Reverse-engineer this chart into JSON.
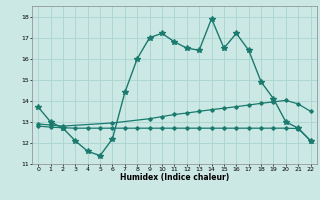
{
  "title": "",
  "xlabel": "Humidex (Indice chaleur)",
  "ylabel": "",
  "bg_color": "#cce8e4",
  "grid_color": "#aad4cf",
  "line_color": "#1a7a6e",
  "xlim": [
    -0.5,
    22.5
  ],
  "ylim": [
    11,
    18.5
  ],
  "yticks": [
    11,
    12,
    13,
    14,
    15,
    16,
    17,
    18
  ],
  "xticks": [
    0,
    1,
    2,
    3,
    4,
    5,
    6,
    7,
    8,
    9,
    10,
    11,
    12,
    13,
    14,
    15,
    16,
    17,
    18,
    19,
    20,
    21,
    22
  ],
  "line1_x": [
    0,
    1,
    2,
    3,
    4,
    5,
    6,
    7,
    8,
    9,
    10,
    11,
    12,
    13,
    14,
    15,
    16,
    17,
    18,
    19,
    20,
    21,
    22
  ],
  "line1_y": [
    13.7,
    13.0,
    12.7,
    12.1,
    11.6,
    11.4,
    12.2,
    14.4,
    16.0,
    17.0,
    17.2,
    16.8,
    16.5,
    16.4,
    17.9,
    16.5,
    17.2,
    16.4,
    14.9,
    14.1,
    13.0,
    12.7,
    12.1
  ],
  "line2_x": [
    0,
    1,
    2,
    6,
    9,
    10,
    11,
    12,
    13,
    14,
    15,
    16,
    17,
    18,
    19,
    20,
    21,
    22
  ],
  "line2_y": [
    12.9,
    12.85,
    12.8,
    12.95,
    13.15,
    13.25,
    13.35,
    13.42,
    13.5,
    13.58,
    13.65,
    13.72,
    13.8,
    13.88,
    13.95,
    14.02,
    13.85,
    13.5
  ],
  "line3_x": [
    0,
    1,
    2,
    3,
    4,
    5,
    6,
    7,
    8,
    9,
    10,
    11,
    12,
    13,
    14,
    15,
    16,
    17,
    18,
    19,
    20,
    21,
    22
  ],
  "line3_y": [
    12.8,
    12.75,
    12.72,
    12.7,
    12.7,
    12.7,
    12.7,
    12.7,
    12.7,
    12.7,
    12.7,
    12.7,
    12.7,
    12.7,
    12.7,
    12.7,
    12.7,
    12.7,
    12.7,
    12.7,
    12.7,
    12.68,
    12.1
  ]
}
